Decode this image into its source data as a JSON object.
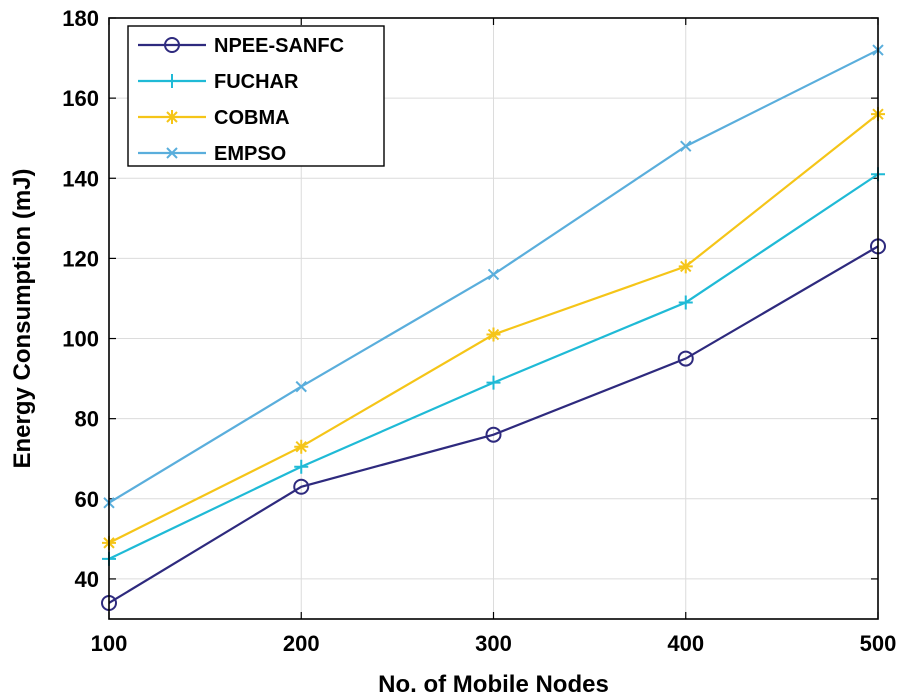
{
  "chart_data": {
    "type": "line",
    "title": "",
    "xlabel": "No. of Mobile Nodes",
    "ylabel": "Energy Consumption (mJ)",
    "x": [
      100,
      200,
      300,
      400,
      500
    ],
    "xlim": [
      100,
      500
    ],
    "ylim": [
      30,
      180
    ],
    "xticks": [
      "100",
      "200",
      "300",
      "400",
      "500"
    ],
    "yticks": [
      "40",
      "60",
      "80",
      "100",
      "120",
      "140",
      "160",
      "180"
    ],
    "grid": true,
    "legend_position": "top-left",
    "series": [
      {
        "name": "NPEE-SANFC",
        "values": [
          34,
          63,
          76,
          95,
          123
        ],
        "color": "#2e2a7e",
        "marker": "circle"
      },
      {
        "name": "FUCHAR",
        "values": [
          45,
          68,
          89,
          109,
          141
        ],
        "color": "#1fbad6",
        "marker": "plus"
      },
      {
        "name": "COBMA",
        "values": [
          49,
          73,
          101,
          118,
          156
        ],
        "color": "#f5c518",
        "marker": "star"
      },
      {
        "name": "EMPSO",
        "values": [
          59,
          88,
          116,
          148,
          172
        ],
        "color": "#5aaedc",
        "marker": "x"
      }
    ]
  }
}
